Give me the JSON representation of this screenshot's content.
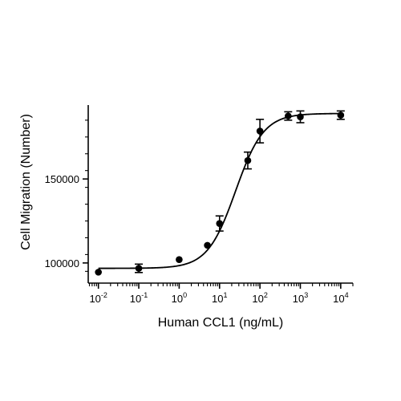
{
  "chart_data": {
    "type": "scatter",
    "xlabel": "Human CCL1 (ng/mL)",
    "ylabel": "Cell Migration (Number)",
    "x_scale": "log",
    "xlim": [
      0.0056,
      20000
    ],
    "ylim": [
      88000,
      194000
    ],
    "grid": false,
    "x_ticks": [
      {
        "value": 0.01,
        "base": "10",
        "exp": "-2"
      },
      {
        "value": 0.1,
        "base": "10",
        "exp": "-1"
      },
      {
        "value": 1,
        "base": "10",
        "exp": "0"
      },
      {
        "value": 10,
        "base": "10",
        "exp": "1"
      },
      {
        "value": 100,
        "base": "10",
        "exp": "2"
      },
      {
        "value": 1000,
        "base": "10",
        "exp": "3"
      },
      {
        "value": 10000,
        "base": "10",
        "exp": "4"
      }
    ],
    "y_ticks": [
      {
        "value": 100000,
        "label": "100000"
      },
      {
        "value": 150000,
        "label": "150000"
      }
    ],
    "series": [
      {
        "points": [
          {
            "x": 0.01,
            "y": 94500,
            "err": 0
          },
          {
            "x": 0.1,
            "y": 96800,
            "err": 2500
          },
          {
            "x": 1,
            "y": 102000,
            "err": 0
          },
          {
            "x": 5,
            "y": 110500,
            "err": 0
          },
          {
            "x": 10,
            "y": 123500,
            "err": 4500
          },
          {
            "x": 50,
            "y": 161000,
            "err": 5000
          },
          {
            "x": 100,
            "y": 178500,
            "err": 7000
          },
          {
            "x": 500,
            "y": 187500,
            "err": 2500
          },
          {
            "x": 1000,
            "y": 187000,
            "err": 3500
          },
          {
            "x": 10000,
            "y": 188000,
            "err": 2500
          }
        ],
        "fit": {
          "bottom": 96800,
          "top": 189000,
          "ec50": 25,
          "hill": 1.25
        }
      }
    ]
  }
}
